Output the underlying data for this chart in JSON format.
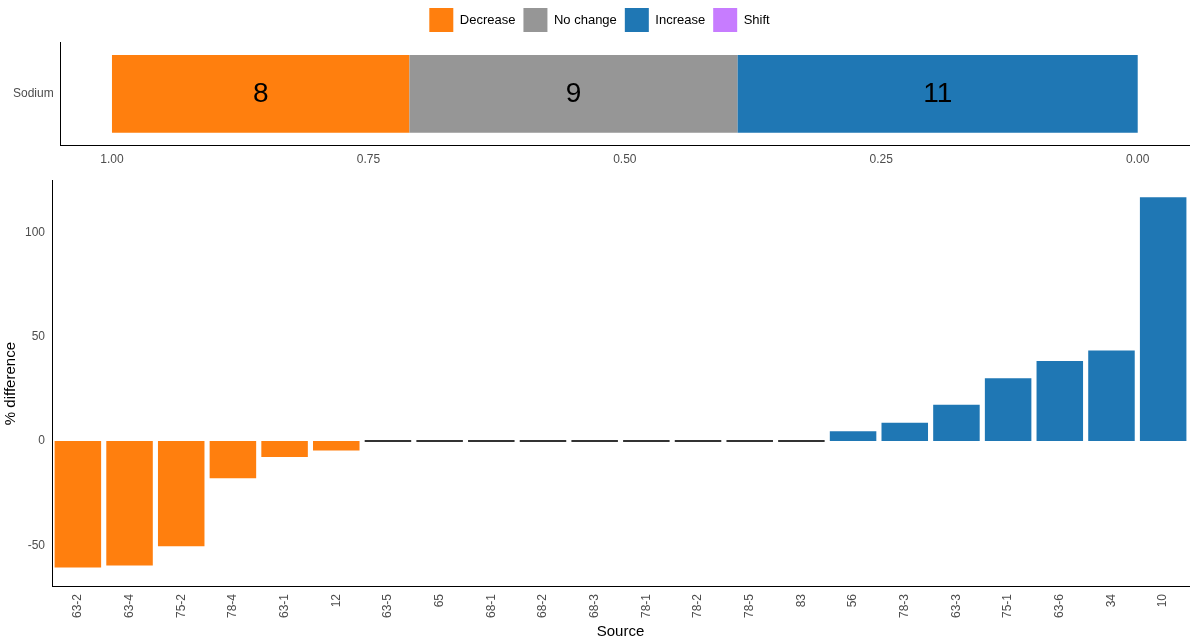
{
  "chart_data": [
    {
      "type": "bar",
      "orientation": "horizontal",
      "stacked": true,
      "legend": "top",
      "categories": [
        "Sodium"
      ],
      "xlim": [
        1.05,
        -0.05
      ],
      "xticks": [
        {
          "value": 1,
          "label": "1.00"
        },
        {
          "value": 0.75,
          "label": "0.75"
        },
        {
          "value": 0.5,
          "label": "0.50"
        },
        {
          "value": 0.25,
          "label": "0.25"
        },
        {
          "value": 0,
          "label": "0.00"
        }
      ],
      "annotations": [
        "8",
        "9",
        "11"
      ],
      "series": [
        {
          "name": "Decrease",
          "color": "#ff7f0e",
          "values": [
            0.29
          ]
        },
        {
          "name": "No change",
          "color": "#969696",
          "values": [
            0.32
          ]
        },
        {
          "name": "Increase",
          "color": "#1f77b4",
          "values": [
            0.39
          ]
        },
        {
          "name": "Shift",
          "color": "#c77cff",
          "values": [
            null
          ]
        }
      ]
    },
    {
      "type": "bar",
      "xlabel": "Source",
      "ylabel": "% difference",
      "ylim": [
        -70,
        125
      ],
      "yticks": [
        -50,
        0,
        50,
        100
      ],
      "categories": [
        "63-2",
        "63-4",
        "75-2",
        "78-4",
        "63-1",
        "12",
        "63-5",
        "65",
        "68-1",
        "68-2",
        "68-3",
        "78-1",
        "78-2",
        "78-5",
        "83",
        "56",
        "78-3",
        "63-3",
        "75-1",
        "63-6",
        "34",
        "10"
      ],
      "values": [
        -60.7,
        -59.7,
        -50.5,
        -17.9,
        -7.7,
        -4.6,
        0,
        0,
        0,
        0,
        0,
        0,
        0,
        0,
        0,
        4.6,
        8.7,
        17.3,
        30.1,
        38.3,
        43.4,
        116.8
      ],
      "colors": [
        "#ff7f0e",
        "#ff7f0e",
        "#ff7f0e",
        "#ff7f0e",
        "#ff7f0e",
        "#ff7f0e",
        "#333333",
        "#333333",
        "#333333",
        "#333333",
        "#333333",
        "#333333",
        "#333333",
        "#333333",
        "#333333",
        "#1f77b4",
        "#1f77b4",
        "#1f77b4",
        "#1f77b4",
        "#1f77b4",
        "#1f77b4",
        "#1f77b4"
      ]
    }
  ]
}
